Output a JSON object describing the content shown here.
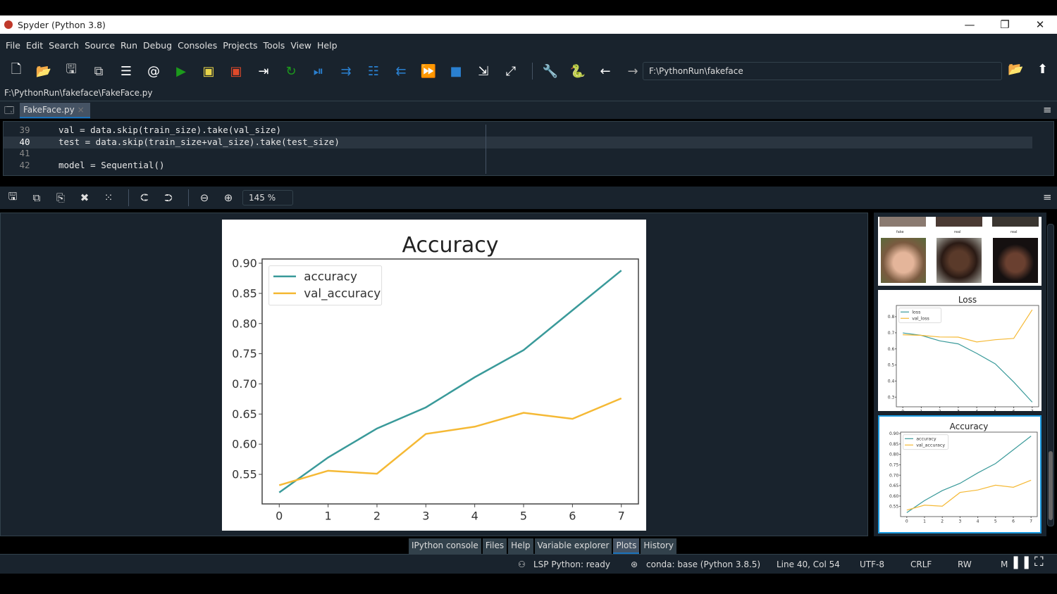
{
  "window": {
    "title": "Spyder (Python 3.8)",
    "minimize": "—",
    "restore": "❐",
    "close": "✕"
  },
  "menu": [
    "File",
    "Edit",
    "Search",
    "Source",
    "Run",
    "Debug",
    "Consoles",
    "Projects",
    "Tools",
    "View",
    "Help"
  ],
  "toolbar": {
    "icons": [
      "new-file",
      "open-file",
      "save",
      "save-all",
      "outline",
      "at",
      "run",
      "run-cell",
      "run-cell-advance",
      "run-selection",
      "rerun",
      "debug",
      "step",
      "step-into",
      "step-return",
      "continue",
      "stop",
      "maximize-pane",
      "fullscreen",
      "preferences",
      "python-path",
      "back",
      "forward"
    ],
    "working_dir": "F:\\PythonRun\\fakeface"
  },
  "editor": {
    "file_path": "F:\\PythonRun\\fakeface\\FakeFace.py",
    "tab": "FakeFace.py",
    "lines": [
      {
        "n": "39",
        "code": "val = data.skip(train_size).take(val_size)"
      },
      {
        "n": "40",
        "code": "test = data.skip(train_size+val_size).take(test_size)"
      },
      {
        "n": "41",
        "code": ""
      },
      {
        "n": "42",
        "code": "model = Sequential()"
      }
    ]
  },
  "plots": {
    "zoom": "145 %"
  },
  "bottom_tabs": [
    "IPython console",
    "Files",
    "Help",
    "Variable explorer",
    "Plots",
    "History"
  ],
  "active_tab": "Plots",
  "status": {
    "lsp": "LSP Python: ready",
    "conda": "conda: base (Python 3.8.5)",
    "position": "Line 40, Col 54",
    "encoding": "UTF-8",
    "eol": "CRLF",
    "mode": "RW",
    "extra": "M"
  },
  "colors": {
    "bg": "#19232d",
    "accent": "#1a72bb",
    "accuracy": "#3a9a9a",
    "val_accuracy": "#f5b935"
  },
  "thumb_labels": [
    "fake",
    "real",
    "real"
  ],
  "chart_data": [
    {
      "type": "line",
      "title": "Accuracy",
      "x": [
        0,
        1,
        2,
        3,
        4,
        5,
        6,
        7
      ],
      "xticks": [
        "0",
        "1",
        "2",
        "3",
        "4",
        "5",
        "6",
        "7"
      ],
      "yticks": [
        "0.55",
        "0.60",
        "0.65",
        "0.70",
        "0.75",
        "0.80",
        "0.85",
        "0.90"
      ],
      "ylim": [
        0.501,
        0.907
      ],
      "xlim": [
        -0.35,
        7.35
      ],
      "legend": "upper-left",
      "grid": false,
      "series": [
        {
          "name": "accuracy",
          "values": [
            0.52,
            0.578,
            0.626,
            0.661,
            0.711,
            0.756,
            0.822,
            0.888
          ]
        },
        {
          "name": "val_accuracy",
          "values": [
            0.532,
            0.556,
            0.551,
            0.617,
            0.629,
            0.652,
            0.642,
            0.676
          ]
        }
      ]
    },
    {
      "type": "line",
      "title": "Loss",
      "x": [
        0,
        1,
        2,
        3,
        4,
        5,
        6,
        7
      ],
      "xticks": [
        "0",
        "1",
        "2",
        "3",
        "4",
        "5",
        "6",
        "7"
      ],
      "yticks": [
        "0.3",
        "0.4",
        "0.5",
        "0.6",
        "0.7",
        "0.8"
      ],
      "ylim": [
        0.24,
        0.87
      ],
      "xlim": [
        -0.35,
        7.35
      ],
      "legend": "upper-left",
      "grid": false,
      "series": [
        {
          "name": "loss",
          "values": [
            0.699,
            0.684,
            0.65,
            0.631,
            0.572,
            0.507,
            0.394,
            0.269
          ]
        },
        {
          "name": "val_loss",
          "values": [
            0.688,
            0.684,
            0.674,
            0.673,
            0.643,
            0.657,
            0.665,
            0.843
          ]
        }
      ]
    }
  ]
}
